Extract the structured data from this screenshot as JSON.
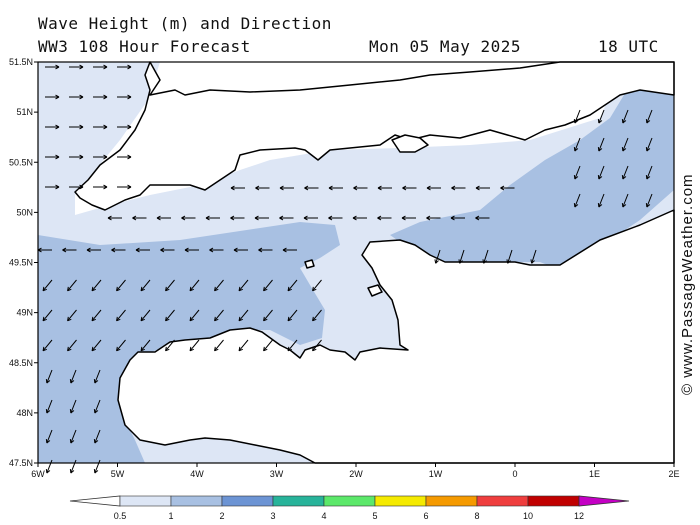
{
  "title_line1": "Wave Height (m) and Direction",
  "title_line2": "WW3 108 Hour Forecast",
  "date": "Mon 05 May 2025",
  "time": "18 UTC",
  "credit": "© www.PassageWeather.com",
  "axes": {
    "x_ticks": [
      "6W",
      "5W",
      "4W",
      "3W",
      "2W",
      "1W",
      "0",
      "1E",
      "2E"
    ],
    "y_ticks": [
      "51.5N",
      "51N",
      "50.5N",
      "50N",
      "49.5N",
      "49N",
      "48.5N",
      "48N",
      "47.5N"
    ],
    "lon_range": [
      -6,
      2
    ],
    "lat_range": [
      47.5,
      51.5
    ]
  },
  "legend": {
    "labels": [
      "0.5",
      "1",
      "2",
      "3",
      "4",
      "5",
      "6",
      "8",
      "10",
      "12"
    ],
    "colors": [
      "#ffffff",
      "#dde6f5",
      "#a8c0e2",
      "#6c94d4",
      "#27b39a",
      "#5ce86a",
      "#f5ea00",
      "#f59a00",
      "#ef3e3e",
      "#c00000",
      "#c400c4"
    ]
  },
  "fill_colors": {
    "light": "#dde6f5",
    "mid": "#a8c0e2",
    "land": "#ffffff",
    "coast": "#000000"
  }
}
